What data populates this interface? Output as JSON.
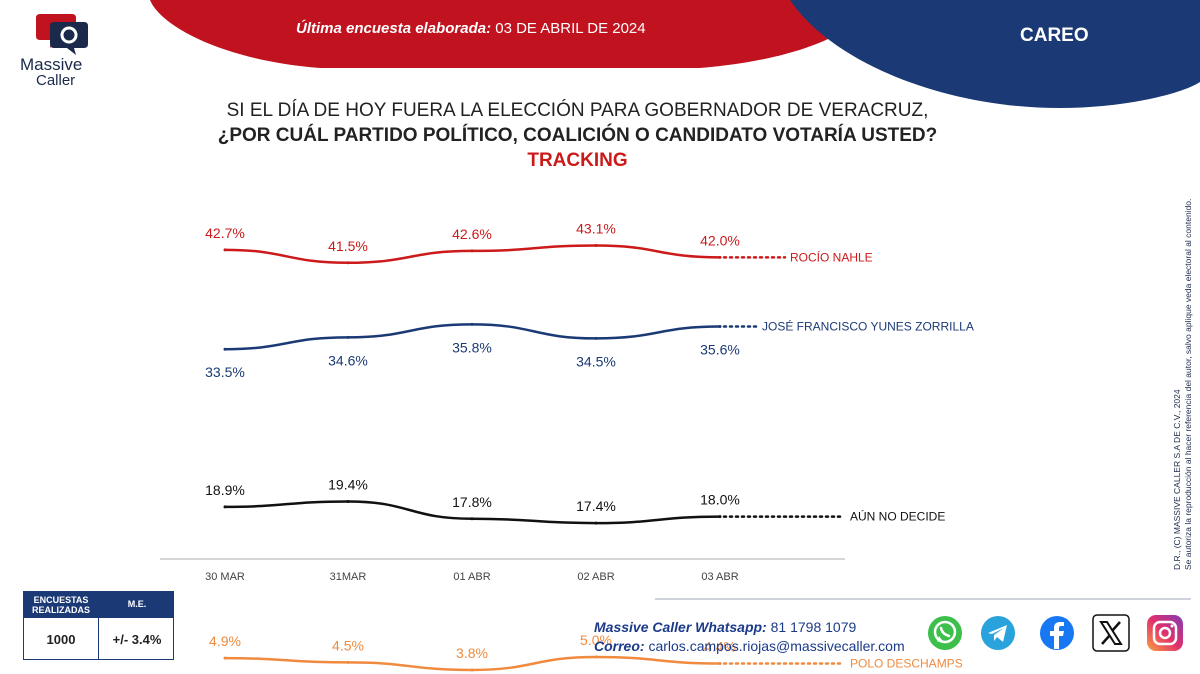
{
  "banner": {
    "label": "Última encuesta elaborada:",
    "date": "03 DE ABRIL DE 2024",
    "tag": "CAREO"
  },
  "logo": {
    "line1": "Massive",
    "line2": "Caller"
  },
  "question": {
    "line1": "SI EL DÍA DE HOY FUERA LA ELECCIÓN PARA GOBERNADOR DE VERACRUZ,",
    "line2": "¿POR CUÁL PARTIDO POLÍTICO, COALICIÓN O CANDIDATO VOTARÍA USTED?",
    "line3": "TRACKING"
  },
  "side_note": {
    "line1": "D.R., (C) MASSIVE CALLER S.A DE C.V., 2024",
    "line2": "Se autoriza la reproducción al hacer referencia del autor, salvo aplique veda electoral al contenido."
  },
  "table": {
    "col1": "ENCUESTAS REALIZADAS",
    "col2": "M.E.",
    "val1": "1000",
    "val2": "+/- 3.4%"
  },
  "contact": {
    "whatsapp_label": "Massive Caller Whatsapp:",
    "whatsapp": "81 1798 1079",
    "email_label": "Correo:",
    "email": "carlos.campos.riojas@massivecaller.com"
  },
  "social": {
    "icons": [
      "whatsapp-icon",
      "telegram-icon",
      "facebook-icon",
      "x-icon",
      "instagram-icon"
    ]
  },
  "colors": {
    "red": "#cc1a1a",
    "navy": "#1b3a75",
    "orange": "#f08a3e",
    "black": "#111111"
  },
  "chart_data": {
    "type": "line",
    "categories": [
      "30 MAR",
      "31MAR",
      "01 ABR",
      "02 ABR",
      "03 ABR"
    ],
    "series": [
      {
        "name": "ROCÍO NAHLE",
        "values": [
          42.7,
          41.5,
          42.6,
          43.1,
          42.0
        ],
        "color": "#cc1a1a",
        "label_pos": "above"
      },
      {
        "name": "JOSÉ FRANCISCO YUNES ZORRILLA",
        "values": [
          33.5,
          34.6,
          35.8,
          34.5,
          35.6
        ],
        "color": "#1b3a75",
        "label_pos": "below"
      },
      {
        "name": "AÚN NO DECIDE",
        "values": [
          18.9,
          19.4,
          17.8,
          17.4,
          18.0
        ],
        "color": "#111111",
        "label_pos": "above"
      },
      {
        "name": "POLO DESCHAMPS",
        "values": [
          4.9,
          4.5,
          3.8,
          5.0,
          4.4
        ],
        "color": "#f08a3e",
        "label_pos": "above"
      }
    ],
    "value_suffix": "%"
  }
}
